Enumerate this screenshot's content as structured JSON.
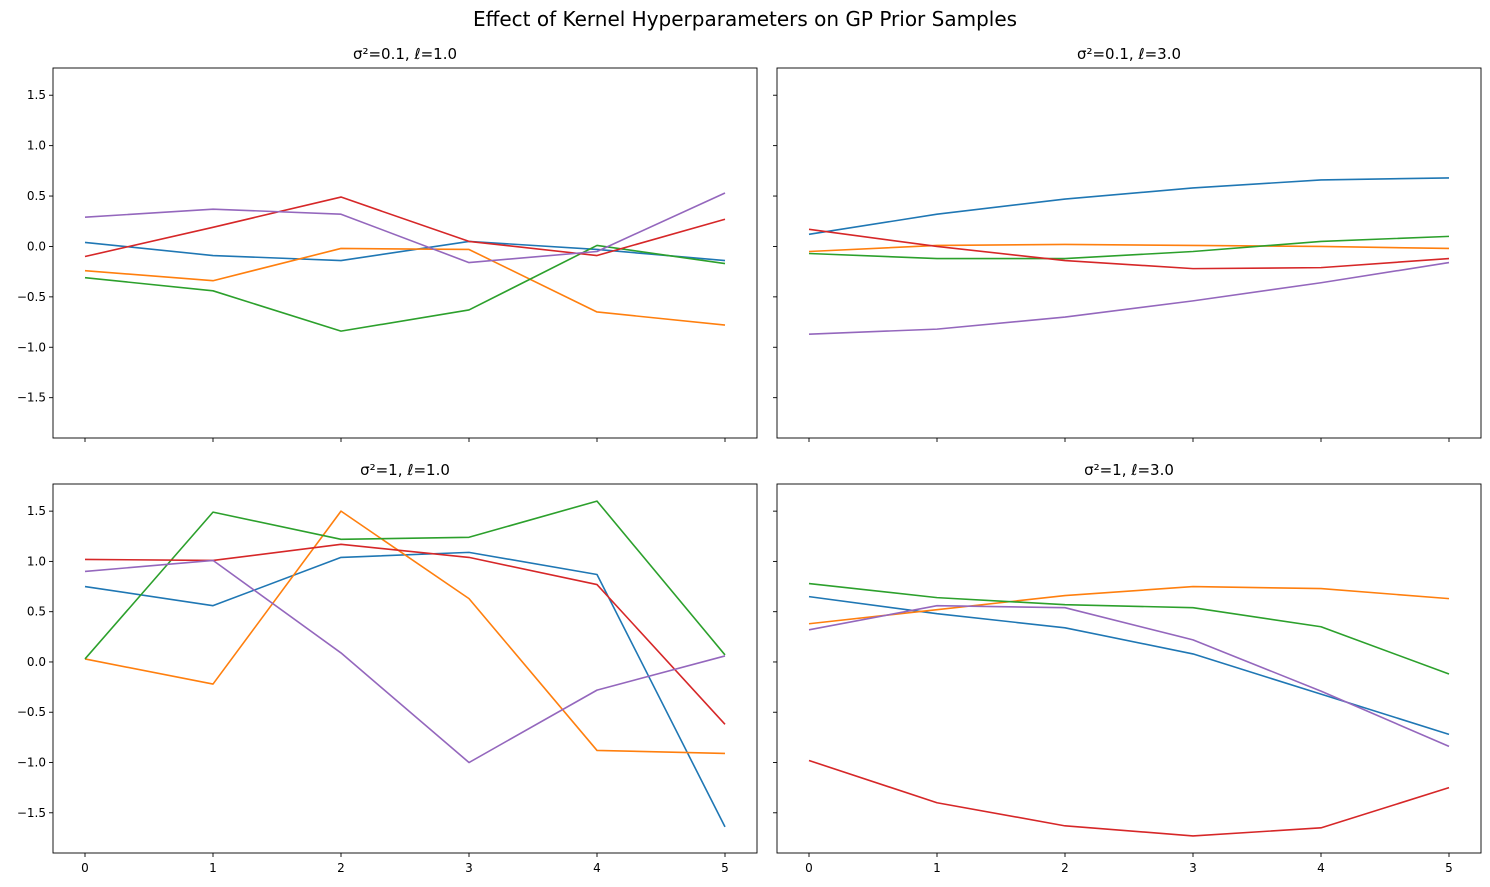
{
  "suptitle": "Effect of Kernel Hyperparameters on GP Prior Samples",
  "series_colors": [
    "#1f77b4",
    "#ff7f0e",
    "#2ca02c",
    "#d62728",
    "#9467bd"
  ],
  "chart_data": [
    {
      "type": "line",
      "title": "σ²=0.1, ℓ=1.0",
      "x": [
        0,
        1,
        2,
        3,
        4,
        5
      ],
      "xlim": [
        -0.25,
        5.25
      ],
      "ylim": [
        -1.9,
        1.77
      ],
      "yticks": [
        -1.5,
        -1.0,
        -0.5,
        0.0,
        0.5,
        1.0,
        1.5
      ],
      "show_xticklabels": false,
      "show_yticklabels": true,
      "series": [
        {
          "values": [
            0.04,
            -0.09,
            -0.14,
            0.05,
            -0.03,
            -0.14
          ]
        },
        {
          "values": [
            -0.24,
            -0.34,
            -0.02,
            -0.03,
            -0.65,
            -0.78
          ]
        },
        {
          "values": [
            -0.31,
            -0.44,
            -0.84,
            -0.63,
            0.01,
            -0.17
          ]
        },
        {
          "values": [
            -0.1,
            0.19,
            0.49,
            0.05,
            -0.09,
            0.27
          ]
        },
        {
          "values": [
            0.29,
            0.37,
            0.32,
            -0.16,
            -0.05,
            0.53
          ]
        }
      ]
    },
    {
      "type": "line",
      "title": "σ²=0.1, ℓ=3.0",
      "x": [
        0,
        1,
        2,
        3,
        4,
        5
      ],
      "xlim": [
        -0.25,
        5.25
      ],
      "ylim": [
        -1.9,
        1.77
      ],
      "yticks": [
        -1.5,
        -1.0,
        -0.5,
        0.0,
        0.5,
        1.0,
        1.5
      ],
      "show_xticklabels": false,
      "show_yticklabels": false,
      "series": [
        {
          "values": [
            0.12,
            0.32,
            0.47,
            0.58,
            0.66,
            0.68
          ]
        },
        {
          "values": [
            -0.05,
            0.01,
            0.02,
            0.01,
            0.0,
            -0.02
          ]
        },
        {
          "values": [
            -0.07,
            -0.12,
            -0.12,
            -0.05,
            0.05,
            0.1
          ]
        },
        {
          "values": [
            0.17,
            0.0,
            -0.14,
            -0.22,
            -0.21,
            -0.12
          ]
        },
        {
          "values": [
            -0.87,
            -0.82,
            -0.7,
            -0.54,
            -0.36,
            -0.16
          ]
        }
      ]
    },
    {
      "type": "line",
      "title": "σ²=1, ℓ=1.0",
      "x": [
        0,
        1,
        2,
        3,
        4,
        5
      ],
      "xlim": [
        -0.25,
        5.25
      ],
      "ylim": [
        -1.9,
        1.77
      ],
      "xticks": [
        0,
        1,
        2,
        3,
        4,
        5
      ],
      "yticks": [
        -1.5,
        -1.0,
        -0.5,
        0.0,
        0.5,
        1.0,
        1.5
      ],
      "show_xticklabels": true,
      "show_yticklabels": true,
      "series": [
        {
          "values": [
            0.75,
            0.56,
            1.04,
            1.09,
            0.87,
            -1.64
          ]
        },
        {
          "values": [
            0.03,
            -0.22,
            1.5,
            0.63,
            -0.88,
            -0.91
          ]
        },
        {
          "values": [
            0.03,
            1.49,
            1.22,
            1.24,
            1.6,
            0.07
          ]
        },
        {
          "values": [
            1.02,
            1.01,
            1.17,
            1.04,
            0.77,
            -0.62
          ]
        },
        {
          "values": [
            0.9,
            1.01,
            0.09,
            -1.0,
            -0.28,
            0.06
          ]
        }
      ]
    },
    {
      "type": "line",
      "title": "σ²=1, ℓ=3.0",
      "x": [
        0,
        1,
        2,
        3,
        4,
        5
      ],
      "xlim": [
        -0.25,
        5.25
      ],
      "ylim": [
        -1.9,
        1.77
      ],
      "xticks": [
        0,
        1,
        2,
        3,
        4,
        5
      ],
      "yticks": [
        -1.5,
        -1.0,
        -0.5,
        0.0,
        0.5,
        1.0,
        1.5
      ],
      "show_xticklabels": true,
      "show_yticklabels": false,
      "series": [
        {
          "values": [
            0.65,
            0.48,
            0.34,
            0.08,
            -0.32,
            -0.72
          ]
        },
        {
          "values": [
            0.38,
            0.52,
            0.66,
            0.75,
            0.73,
            0.63
          ]
        },
        {
          "values": [
            0.78,
            0.64,
            0.57,
            0.54,
            0.35,
            -0.12
          ]
        },
        {
          "values": [
            -0.98,
            -1.4,
            -1.63,
            -1.73,
            -1.65,
            -1.25
          ]
        },
        {
          "values": [
            0.32,
            0.56,
            0.54,
            0.22,
            -0.29,
            -0.84
          ]
        }
      ]
    }
  ]
}
